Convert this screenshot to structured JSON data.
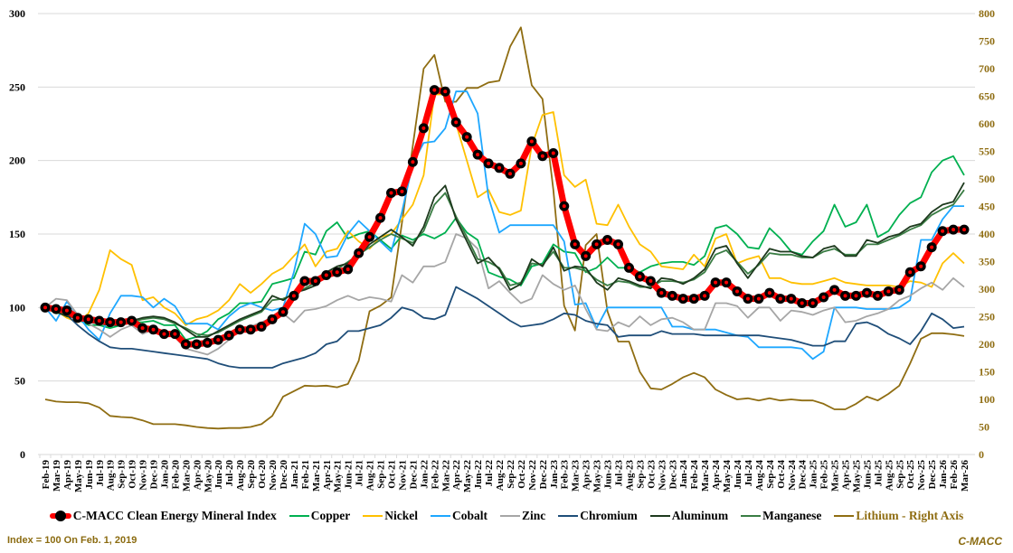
{
  "chart_data": {
    "type": "line",
    "x": [
      "Feb-19",
      "Mar-19",
      "Apr-19",
      "May-19",
      "Jun-19",
      "Jul-19",
      "Aug-19",
      "Sep-19",
      "Oct-19",
      "Nov-19",
      "Dec-19",
      "Jan-20",
      "Feb-20",
      "Mar-20",
      "Apr-20",
      "May-20",
      "Jun-20",
      "Jul-20",
      "Aug-20",
      "Sep-20",
      "Oct-20",
      "Nov-20",
      "Dec-20",
      "Jan-21",
      "Feb-21",
      "Mar-21",
      "Apr-21",
      "May-21",
      "Jun-21",
      "Jul-21",
      "Aug-21",
      "Sep-21",
      "Oct-21",
      "Nov-21",
      "Dec-21",
      "Jan-22",
      "Feb-22",
      "Mar-22",
      "Apr-22",
      "May-22",
      "Jun-22",
      "Jul-22",
      "Aug-22",
      "Sep-22",
      "Oct-22",
      "Nov-22",
      "Dec-22",
      "Jan-23",
      "Feb-23",
      "Mar-23",
      "Apr-23",
      "May-23",
      "Jun-23",
      "Jul-23",
      "Aug-23",
      "Sep-23",
      "Oct-23",
      "Nov-23",
      "Dec-23",
      "Jan-24",
      "Feb-24",
      "Mar-24",
      "Apr-24",
      "May-24",
      "Jun-24",
      "Jul-24",
      "Aug-24",
      "Sep-24",
      "Oct-24",
      "Nov-24",
      "Dec-24",
      "Jan-25",
      "Feb-25",
      "Mar-25",
      "Apr-25",
      "May-25",
      "Jun-25",
      "Jul-25",
      "Aug-25",
      "Sep-25",
      "Oct-25",
      "Nov-25",
      "Dec-25",
      "Jan-26",
      "Feb-26",
      "Mar-26"
    ],
    "y_left": {
      "range": [
        0,
        300
      ],
      "ticks": [
        0,
        50,
        100,
        150,
        200,
        250,
        300
      ]
    },
    "y_right": {
      "range": [
        0,
        800
      ],
      "ticks": [
        0,
        50,
        100,
        150,
        200,
        250,
        300,
        350,
        400,
        450,
        500,
        550,
        600,
        650,
        700,
        750,
        800
      ]
    },
    "grid": true,
    "legend": "bottom",
    "series": [
      {
        "name": "C-MACC Clean Energy Mineral Index",
        "axis": "left",
        "color": "#ff0000",
        "values": [
          100,
          99,
          98,
          93,
          92,
          91,
          90,
          90,
          91,
          86,
          85,
          82,
          82,
          75,
          75,
          76,
          78,
          81,
          85,
          85,
          87,
          92,
          97,
          108,
          118,
          118,
          122,
          124,
          126,
          137,
          148,
          161,
          178,
          179,
          199,
          222,
          248,
          247,
          226,
          216,
          204,
          198,
          195,
          191,
          198,
          213,
          203,
          205,
          169,
          143,
          135,
          143,
          146,
          143,
          127,
          121,
          118,
          110,
          108,
          106,
          106,
          108,
          117,
          117,
          111,
          106,
          106,
          110,
          106,
          106,
          103,
          103,
          107,
          112,
          108,
          108,
          110,
          108,
          111,
          112,
          124,
          128,
          141,
          152,
          153,
          153
        ]
      },
      {
        "name": "Copper",
        "axis": "left",
        "color": "#00b050",
        "values": [
          100,
          96,
          97,
          92,
          88,
          88,
          86,
          88,
          90,
          90,
          91,
          88,
          88,
          78,
          80,
          84,
          92,
          96,
          103,
          103,
          104,
          116,
          118,
          120,
          138,
          136,
          152,
          158,
          147,
          150,
          152,
          146,
          140,
          149,
          146,
          150,
          147,
          151,
          161,
          151,
          146,
          124,
          121,
          119,
          115,
          128,
          130,
          143,
          138,
          137,
          124,
          127,
          134,
          127,
          127,
          124,
          128,
          130,
          131,
          131,
          129,
          135,
          154,
          156,
          150,
          141,
          140,
          154,
          147,
          138,
          136,
          145,
          152,
          170,
          155,
          158,
          170,
          148,
          152,
          163,
          171,
          175,
          192,
          200,
          203,
          190
        ]
      },
      {
        "name": "Nickel",
        "axis": "left",
        "color": "#ffc000",
        "values": [
          100,
          98,
          93,
          90,
          96,
          112,
          139,
          133,
          129,
          105,
          107,
          100,
          96,
          88,
          92,
          94,
          98,
          105,
          116,
          110,
          116,
          123,
          127,
          135,
          143,
          128,
          138,
          140,
          152,
          145,
          140,
          148,
          150,
          160,
          170,
          190,
          245,
          245,
          225,
          200,
          175,
          180,
          165,
          163,
          166,
          210,
          231,
          233,
          190,
          182,
          187,
          157,
          156,
          170,
          155,
          143,
          138,
          128,
          127,
          126,
          136,
          128,
          147,
          150,
          130,
          133,
          135,
          120,
          120,
          117,
          116,
          116,
          118,
          120,
          117,
          116,
          115,
          115,
          115,
          114,
          118,
          117,
          114,
          130,
          137,
          130
        ]
      },
      {
        "name": "Cobalt",
        "axis": "left",
        "color": "#1ea7ff",
        "values": [
          100,
          91,
          104,
          95,
          85,
          78,
          96,
          108,
          108,
          107,
          100,
          106,
          101,
          89,
          89,
          89,
          85,
          94,
          100,
          103,
          100,
          98,
          100,
          124,
          157,
          150,
          134,
          135,
          150,
          159,
          152,
          145,
          138,
          165,
          198,
          212,
          213,
          222,
          247,
          247,
          232,
          175,
          151,
          156,
          156,
          156,
          156,
          156,
          145,
          102,
          103,
          86,
          100,
          100,
          100,
          100,
          100,
          100,
          87,
          87,
          85,
          85,
          85,
          83,
          81,
          80,
          73,
          73,
          73,
          73,
          72,
          65,
          70,
          100,
          100,
          100,
          99,
          99,
          99,
          100,
          105,
          146,
          146,
          160,
          169,
          169
        ]
      },
      {
        "name": "Zinc",
        "axis": "left",
        "color": "#a6a6a6",
        "values": [
          100,
          106,
          105,
          95,
          89,
          85,
          80,
          85,
          88,
          82,
          85,
          83,
          80,
          72,
          70,
          68,
          72,
          78,
          85,
          87,
          90,
          93,
          96,
          90,
          98,
          99,
          101,
          105,
          108,
          105,
          107,
          106,
          104,
          122,
          117,
          128,
          128,
          131,
          150,
          147,
          140,
          113,
          118,
          110,
          103,
          106,
          122,
          116,
          112,
          115,
          99,
          85,
          84,
          90,
          87,
          94,
          88,
          92,
          93,
          90,
          85,
          85,
          103,
          103,
          101,
          93,
          100,
          100,
          91,
          98,
          97,
          95,
          98,
          100,
          90,
          91,
          94,
          96,
          99,
          105,
          108,
          113,
          117,
          112,
          120,
          114
        ]
      },
      {
        "name": "Chromium",
        "axis": "left",
        "color": "#1f4e79",
        "values": [
          100,
          98,
          95,
          88,
          82,
          77,
          73,
          72,
          72,
          71,
          70,
          69,
          68,
          67,
          66,
          65,
          62,
          60,
          59,
          59,
          59,
          59,
          62,
          64,
          66,
          69,
          75,
          77,
          84,
          84,
          86,
          88,
          93,
          100,
          98,
          93,
          92,
          95,
          114,
          110,
          106,
          101,
          96,
          91,
          87,
          88,
          89,
          92,
          96,
          95,
          91,
          89,
          88,
          80,
          81,
          81,
          81,
          84,
          82,
          82,
          82,
          81,
          81,
          81,
          81,
          81,
          81,
          80,
          79,
          78,
          76,
          74,
          74,
          77,
          77,
          89,
          90,
          87,
          82,
          79,
          75,
          84,
          96,
          92,
          86,
          87
        ]
      },
      {
        "name": "Aluminum",
        "axis": "left",
        "color": "#1e3a1e",
        "values": [
          100,
          97,
          94,
          93,
          90,
          89,
          88,
          88,
          91,
          93,
          94,
          93,
          90,
          85,
          80,
          80,
          84,
          88,
          92,
          95,
          98,
          108,
          105,
          110,
          112,
          115,
          124,
          128,
          130,
          135,
          143,
          148,
          153,
          148,
          142,
          155,
          175,
          183,
          160,
          145,
          130,
          134,
          126,
          112,
          116,
          133,
          128,
          141,
          125,
          128,
          127,
          117,
          112,
          120,
          118,
          115,
          113,
          120,
          119,
          116,
          120,
          126,
          140,
          142,
          130,
          120,
          130,
          140,
          138,
          138,
          135,
          134,
          140,
          142,
          135,
          135,
          146,
          144,
          148,
          150,
          155,
          157,
          165,
          170,
          172,
          185
        ]
      },
      {
        "name": "Manganese",
        "axis": "left",
        "color": "#3a7d44",
        "values": [
          100,
          98,
          95,
          92,
          91,
          90,
          89,
          89,
          90,
          92,
          93,
          92,
          89,
          86,
          82,
          81,
          83,
          87,
          91,
          94,
          97,
          105,
          106,
          109,
          113,
          117,
          122,
          126,
          131,
          136,
          141,
          146,
          150,
          147,
          144,
          152,
          170,
          178,
          162,
          148,
          133,
          131,
          127,
          115,
          117,
          130,
          129,
          138,
          127,
          127,
          125,
          119,
          115,
          118,
          117,
          114,
          114,
          118,
          118,
          117,
          119,
          124,
          136,
          139,
          131,
          123,
          129,
          137,
          136,
          136,
          134,
          134,
          138,
          140,
          136,
          136,
          143,
          143,
          146,
          149,
          153,
          156,
          163,
          167,
          170,
          180
        ]
      },
      {
        "name": "Lithium - Right Axis",
        "axis": "right",
        "color": "#8f6d12",
        "values": [
          100,
          96,
          95,
          95,
          93,
          85,
          70,
          68,
          67,
          62,
          55,
          55,
          55,
          53,
          50,
          48,
          47,
          48,
          48,
          50,
          55,
          70,
          105,
          115,
          125,
          124,
          125,
          122,
          128,
          170,
          260,
          270,
          285,
          420,
          560,
          700,
          725,
          640,
          640,
          665,
          665,
          675,
          678,
          740,
          775,
          670,
          645,
          480,
          270,
          225,
          380,
          400,
          260,
          205,
          205,
          150,
          120,
          118,
          128,
          140,
          148,
          140,
          118,
          108,
          100,
          102,
          98,
          102,
          98,
          100,
          98,
          98,
          92,
          82,
          82,
          92,
          105,
          98,
          110,
          125,
          165,
          210,
          220,
          220,
          218,
          215
        ]
      }
    ]
  },
  "footnote": "Index = 100 On Feb. 1, 2019",
  "brand": "C-MACC"
}
